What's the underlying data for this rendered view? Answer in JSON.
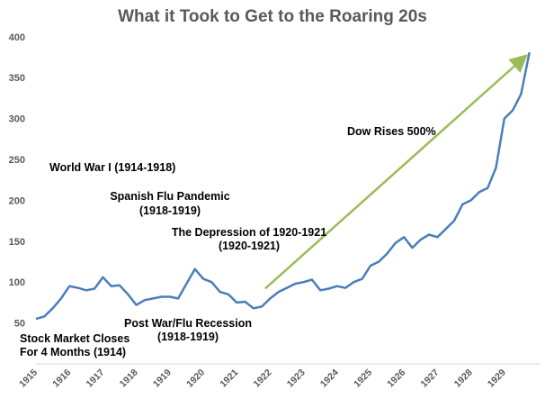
{
  "chart_data": {
    "type": "line",
    "title": "What it Took to Get to the Roaring 20s",
    "xlabel": "",
    "ylabel": "",
    "ylim": [
      0,
      400
    ],
    "yticks": [
      400,
      350,
      300,
      250,
      200,
      150,
      100,
      50
    ],
    "xticks": [
      "1915",
      "1916",
      "1917",
      "1918",
      "1919",
      "1920",
      "1921",
      "1922",
      "1923",
      "1924",
      "1925",
      "1926",
      "1927",
      "1928",
      "1929"
    ],
    "grid": false,
    "line_color": "#4a7ebb",
    "arrow_color": "#9bbb59",
    "series": [
      {
        "x": [
          1915.0,
          1915.25,
          1915.5,
          1915.75,
          1916.0,
          1916.25,
          1916.5,
          1916.75,
          1917.0,
          1917.25,
          1917.5,
          1917.75,
          1918.0,
          1918.25,
          1918.5,
          1918.75,
          1919.0,
          1919.25,
          1919.5,
          1919.75,
          1920.0,
          1920.25,
          1920.5,
          1920.75,
          1921.0,
          1921.25,
          1921.5,
          1921.75,
          1922.0,
          1922.25,
          1922.5,
          1922.75,
          1923.0,
          1923.25,
          1923.5,
          1923.75,
          1924.0,
          1924.25,
          1924.5,
          1924.75,
          1925.0,
          1925.25,
          1925.5,
          1925.75,
          1926.0,
          1926.25,
          1926.5,
          1926.75,
          1927.0,
          1927.25,
          1927.5,
          1927.75,
          1928.0,
          1928.25,
          1928.5,
          1928.75,
          1929.0,
          1929.25,
          1929.5,
          1929.75
        ],
        "values": [
          55,
          58,
          68,
          80,
          95,
          93,
          90,
          92,
          106,
          95,
          96,
          85,
          72,
          78,
          80,
          82,
          82,
          80,
          98,
          116,
          104,
          100,
          88,
          85,
          75,
          76,
          68,
          70,
          80,
          88,
          93,
          98,
          100,
          103,
          90,
          92,
          95,
          93,
          100,
          104,
          120,
          125,
          135,
          148,
          155,
          142,
          152,
          158,
          155,
          165,
          175,
          195,
          200,
          210,
          215,
          240,
          300,
          310,
          330,
          381
        ]
      }
    ],
    "arrow": {
      "from": [
        1921.85,
        92
      ],
      "to": [
        1929.6,
        375
      ]
    },
    "annotations": [
      "Dow Rises 500%",
      "World War I (1914-1918)",
      "Spanish Flu Pandemic",
      "(1918-1919)",
      "The Depression of 1920-1921",
      "(1920-1921)",
      "Post War/Flu Recession",
      "(1918-1919)",
      "Stock Market Closes",
      "For 4 Months (1914)"
    ]
  }
}
